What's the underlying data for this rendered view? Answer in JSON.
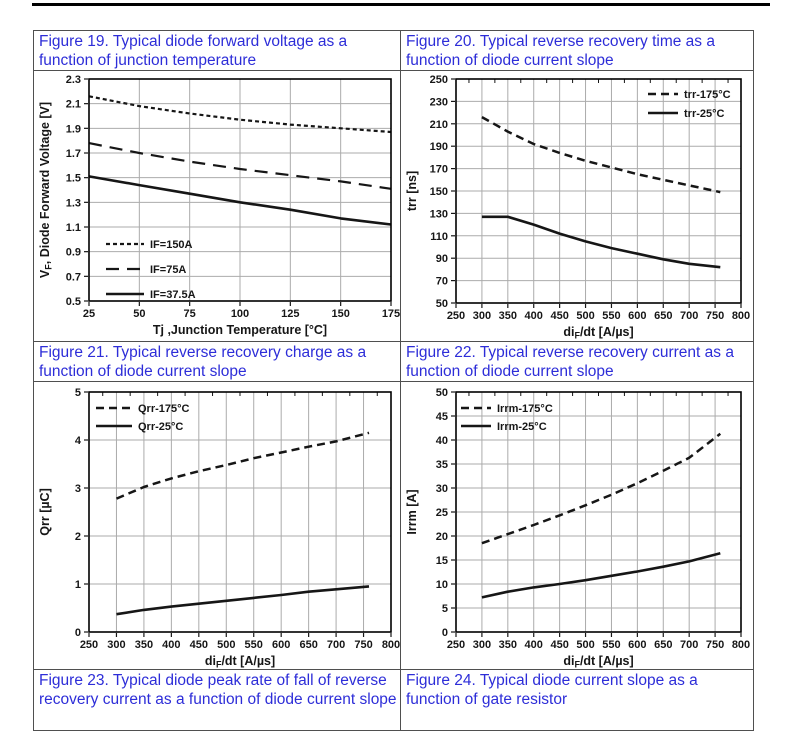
{
  "figures": [
    {
      "caption": "Figure 19. Typical diode forward voltage as a function of junction temperature"
    },
    {
      "caption": "Figure 20. Typical reverse recovery time as a function of diode current slope"
    },
    {
      "caption": "Figure 21. Typical reverse recovery charge as a function of diode current slope"
    },
    {
      "caption": "Figure 22. Typical reverse recovery current as a function of diode current slope"
    },
    {
      "caption": "Figure 23. Typical diode peak rate of fall of reverse recovery current as a function of diode current slope"
    },
    {
      "caption": "Figure 24. Typical diode current slope as a function of gate resistor"
    }
  ],
  "colors": {
    "caption_blue": "#2d2dd8",
    "ink": "#161616",
    "grid": "#ababab",
    "table_border": "#4f4f4f",
    "plot_border": "#000000"
  },
  "chart_data": [
    {
      "type": "line",
      "title": "Typical diode forward voltage as a function of junction temperature",
      "xlabel": "Tj ,Junction Temperature [°C]",
      "ylabel": "V~F~, Diode Forward Voltage [V]",
      "xlim": [
        25,
        175
      ],
      "ylim": [
        0.5,
        2.3
      ],
      "xticks": [
        25,
        50,
        75,
        100,
        125,
        150,
        175
      ],
      "yticks": [
        0.5,
        0.7,
        0.9,
        1.1,
        1.3,
        1.5,
        1.7,
        1.9,
        2.1,
        2.3
      ],
      "grid": true,
      "x_minor_ticks": false,
      "legend_position": "bottom-left",
      "series": [
        {
          "name": "IF=150A",
          "line": "dash-fine",
          "x": [
            25,
            50,
            75,
            100,
            125,
            150,
            175
          ],
          "y": [
            2.16,
            2.08,
            2.02,
            1.97,
            1.93,
            1.9,
            1.87
          ]
        },
        {
          "name": "IF=75A",
          "line": "dash-long",
          "x": [
            25,
            50,
            75,
            100,
            125,
            150,
            175
          ],
          "y": [
            1.78,
            1.7,
            1.63,
            1.57,
            1.52,
            1.47,
            1.41
          ]
        },
        {
          "name": "IF=37.5A",
          "line": "solid",
          "x": [
            25,
            50,
            75,
            100,
            125,
            150,
            175
          ],
          "y": [
            1.51,
            1.44,
            1.37,
            1.3,
            1.24,
            1.17,
            1.12
          ]
        }
      ]
    },
    {
      "type": "line",
      "title": "Typical reverse recovery time as a function of diode current slope",
      "xlabel": "di~F~/dt [A/µs]",
      "ylabel": "trr [ns]",
      "xlim": [
        250,
        800
      ],
      "ylim": [
        50,
        250
      ],
      "xticks": [
        250,
        300,
        350,
        400,
        450,
        500,
        550,
        600,
        650,
        700,
        750,
        800
      ],
      "yticks": [
        50,
        70,
        90,
        110,
        130,
        150,
        170,
        190,
        210,
        230,
        250
      ],
      "grid": true,
      "x_minor_ticks": true,
      "legend_position": "top-right",
      "series": [
        {
          "name": "trr-175°C",
          "line": "dash",
          "x": [
            300,
            350,
            400,
            450,
            500,
            550,
            600,
            650,
            700,
            760
          ],
          "y": [
            216,
            203,
            192,
            184,
            177,
            171,
            165,
            160,
            155,
            149
          ]
        },
        {
          "name": "trr-25°C",
          "line": "solid",
          "x": [
            300,
            350,
            400,
            450,
            500,
            550,
            600,
            650,
            700,
            760
          ],
          "y": [
            127,
            127,
            120,
            112,
            105,
            99,
            94,
            89,
            85,
            82
          ]
        }
      ]
    },
    {
      "type": "line",
      "title": "Typical reverse recovery charge as a function of diode current slope",
      "xlabel": "di~F~/dt [A/µs]",
      "ylabel": "Qrr [µC]",
      "xlim": [
        250,
        800
      ],
      "ylim": [
        0,
        5
      ],
      "xticks": [
        250,
        300,
        350,
        400,
        450,
        500,
        550,
        600,
        650,
        700,
        750,
        800
      ],
      "yticks": [
        0,
        1,
        2,
        3,
        4,
        5
      ],
      "grid": true,
      "x_minor_ticks": true,
      "legend_position": "top-left",
      "series": [
        {
          "name": "Qrr-175°C",
          "line": "dash",
          "x": [
            300,
            350,
            400,
            450,
            500,
            550,
            600,
            650,
            700,
            760
          ],
          "y": [
            2.78,
            3.02,
            3.2,
            3.35,
            3.48,
            3.62,
            3.74,
            3.86,
            3.97,
            4.15
          ]
        },
        {
          "name": "Qrr-25°C",
          "line": "solid",
          "x": [
            300,
            350,
            400,
            450,
            500,
            550,
            600,
            650,
            700,
            760
          ],
          "y": [
            0.37,
            0.46,
            0.53,
            0.59,
            0.65,
            0.71,
            0.77,
            0.84,
            0.89,
            0.95
          ]
        }
      ]
    },
    {
      "type": "line",
      "title": "Typical reverse recovery current as a function of diode current slope",
      "xlabel": "di~F~/dt [A/µs]",
      "ylabel": "Irrm [A]",
      "xlim": [
        250,
        800
      ],
      "ylim": [
        0,
        50
      ],
      "xticks": [
        250,
        300,
        350,
        400,
        450,
        500,
        550,
        600,
        650,
        700,
        750,
        800
      ],
      "yticks": [
        0,
        5,
        10,
        15,
        20,
        25,
        30,
        35,
        40,
        45,
        50
      ],
      "grid": true,
      "x_minor_ticks": true,
      "legend_position": "top-left",
      "series": [
        {
          "name": "Irrm-175°C",
          "line": "dash",
          "x": [
            300,
            350,
            400,
            450,
            500,
            550,
            600,
            650,
            700,
            760
          ],
          "y": [
            18.5,
            20.4,
            22.3,
            24.3,
            26.4,
            28.6,
            31.0,
            33.6,
            36.3,
            41.3
          ]
        },
        {
          "name": "Irrm-25°C",
          "line": "solid",
          "x": [
            300,
            350,
            400,
            450,
            500,
            550,
            600,
            650,
            700,
            760
          ],
          "y": [
            7.2,
            8.4,
            9.3,
            10.0,
            10.8,
            11.7,
            12.6,
            13.6,
            14.7,
            16.4
          ]
        }
      ]
    }
  ]
}
